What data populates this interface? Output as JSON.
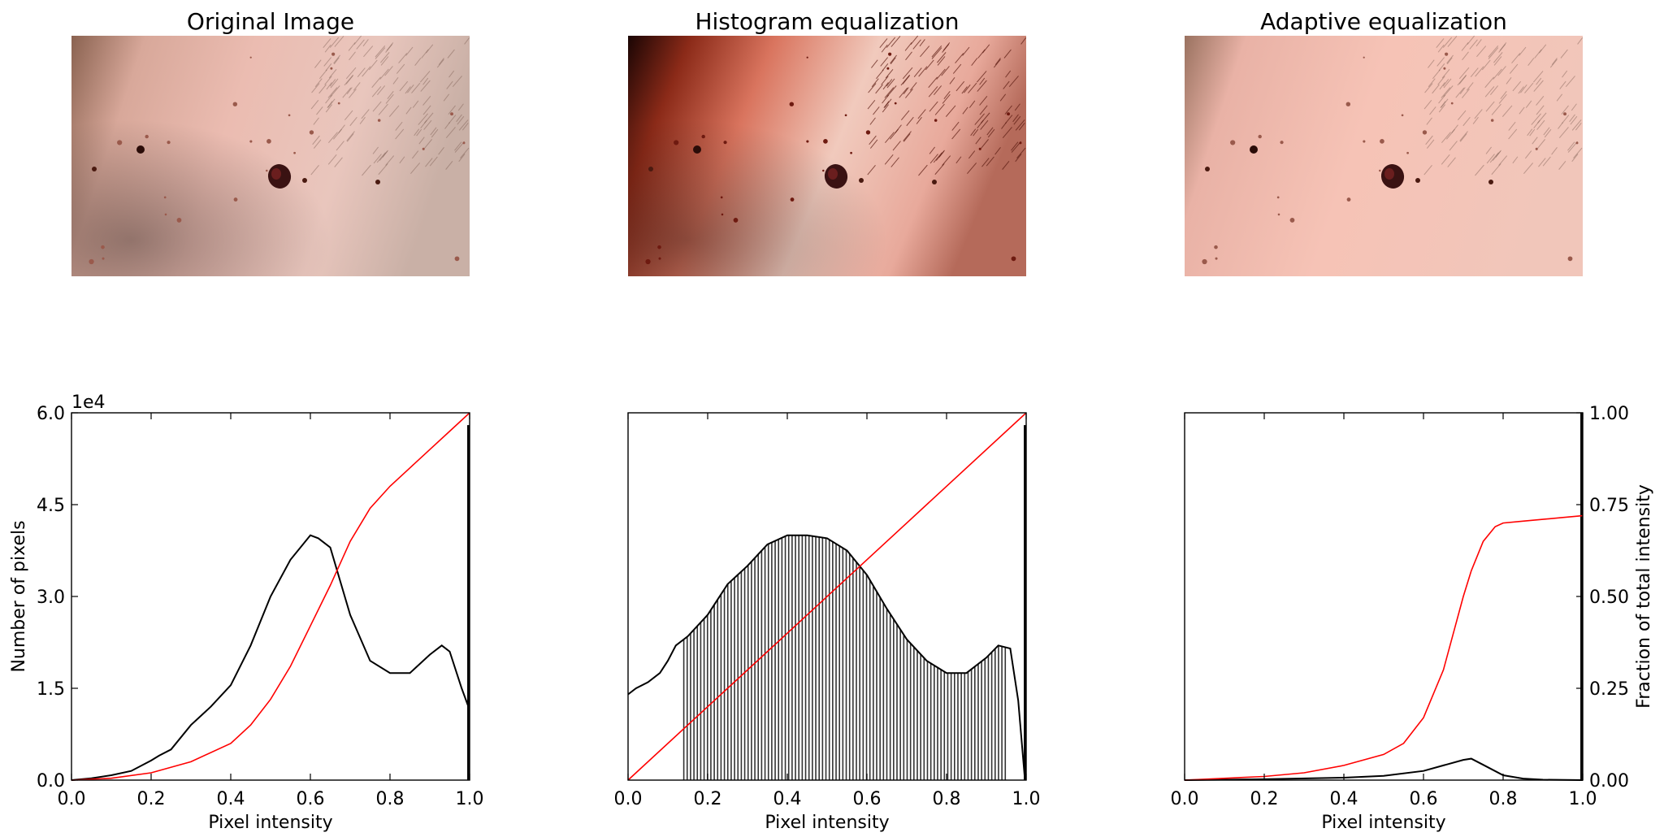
{
  "figure": {
    "images": [
      {
        "title": "Original Image",
        "variant": "original"
      },
      {
        "title": "Histogram equalization",
        "variant": "equalized"
      },
      {
        "title": "Adaptive equalization",
        "variant": "adaptive"
      }
    ]
  },
  "colors": {
    "histogram": "#000000",
    "cdf": "#ff0000",
    "skin_base": "#e6b8ad",
    "lesion": "#3a1212"
  },
  "chart_data": [
    {
      "type": "line",
      "title": "",
      "xlabel": "Pixel intensity",
      "ylabel": "Number of pixels",
      "y_offset_label": "1e4",
      "xlim": [
        0,
        1
      ],
      "ylim": [
        0,
        60000
      ],
      "xticks": [
        "0.0",
        "0.2",
        "0.4",
        "0.6",
        "0.8",
        "1.0"
      ],
      "yticks": [
        "0.0",
        "1.5",
        "3.0",
        "4.5",
        "6.0"
      ],
      "series": [
        {
          "kind": "histogram",
          "x": [
            0.0,
            0.05,
            0.1,
            0.15,
            0.2,
            0.22,
            0.25,
            0.3,
            0.35,
            0.4,
            0.45,
            0.5,
            0.55,
            0.6,
            0.62,
            0.65,
            0.7,
            0.75,
            0.8,
            0.85,
            0.9,
            0.93,
            0.95,
            0.98,
            0.997
          ],
          "y": [
            0,
            300,
            800,
            1500,
            3200,
            4000,
            5000,
            9000,
            12000,
            15500,
            22000,
            30000,
            36000,
            40000,
            39500,
            38000,
            27000,
            19500,
            17500,
            17500,
            20500,
            22000,
            21000,
            15000,
            12000
          ],
          "spike": {
            "x": 0.997,
            "y": 58000
          }
        },
        {
          "kind": "cdf",
          "scale": "fraction",
          "x": [
            0.0,
            0.1,
            0.2,
            0.3,
            0.4,
            0.45,
            0.5,
            0.55,
            0.6,
            0.65,
            0.7,
            0.75,
            0.8,
            0.85,
            0.9,
            0.95,
            1.0
          ],
          "y": [
            0,
            0.005,
            0.02,
            0.05,
            0.1,
            0.15,
            0.22,
            0.31,
            0.42,
            0.53,
            0.65,
            0.74,
            0.8,
            0.85,
            0.9,
            0.95,
            1.0
          ]
        }
      ]
    },
    {
      "type": "line",
      "title": "",
      "xlabel": "Pixel intensity",
      "xlim": [
        0,
        1
      ],
      "ylim": [
        0,
        60000
      ],
      "xticks": [
        "0.0",
        "0.2",
        "0.4",
        "0.6",
        "0.8",
        "1.0"
      ],
      "series": [
        {
          "kind": "histogram",
          "x": [
            0.0,
            0.02,
            0.05,
            0.08,
            0.1,
            0.12,
            0.15,
            0.2,
            0.25,
            0.3,
            0.35,
            0.4,
            0.45,
            0.5,
            0.55,
            0.6,
            0.65,
            0.7,
            0.75,
            0.8,
            0.85,
            0.9,
            0.93,
            0.96,
            0.98,
            0.997
          ],
          "y": [
            14000,
            15000,
            16000,
            17500,
            19500,
            22000,
            23500,
            27000,
            32000,
            35000,
            38500,
            40000,
            40000,
            39500,
            37500,
            33500,
            28000,
            23000,
            19500,
            17500,
            17500,
            20000,
            22000,
            21500,
            13000,
            0
          ],
          "spike": {
            "x": 0.997,
            "y": 58000
          },
          "dense_bars": true
        },
        {
          "kind": "cdf",
          "scale": "fraction",
          "x": [
            0.0,
            1.0
          ],
          "y": [
            0.0,
            1.0
          ]
        }
      ]
    },
    {
      "type": "line",
      "title": "",
      "xlabel": "Pixel intensity",
      "y2label": "Fraction of total intensity",
      "xlim": [
        0,
        1
      ],
      "ylim": [
        0,
        60000
      ],
      "y2lim": [
        0,
        1
      ],
      "xticks": [
        "0.0",
        "0.2",
        "0.4",
        "0.6",
        "0.8",
        "1.0"
      ],
      "y2ticks": [
        "0.00",
        "0.25",
        "0.50",
        "0.75",
        "1.00"
      ],
      "series": [
        {
          "kind": "histogram",
          "x": [
            0.0,
            0.2,
            0.4,
            0.5,
            0.6,
            0.65,
            0.7,
            0.72,
            0.75,
            0.8,
            0.85,
            0.9,
            1.0
          ],
          "y": [
            0,
            150,
            400,
            700,
            1500,
            2400,
            3300,
            3500,
            2500,
            800,
            250,
            60,
            0
          ],
          "spike": {
            "x": 0.997,
            "y": 60000
          }
        },
        {
          "kind": "cdf",
          "scale": "fraction",
          "x": [
            0.0,
            0.2,
            0.3,
            0.4,
            0.5,
            0.55,
            0.6,
            0.65,
            0.68,
            0.7,
            0.72,
            0.75,
            0.78,
            0.8,
            0.85,
            0.9,
            0.95,
            1.0
          ],
          "y": [
            0,
            0.01,
            0.02,
            0.04,
            0.07,
            0.1,
            0.17,
            0.3,
            0.42,
            0.5,
            0.57,
            0.65,
            0.69,
            0.7,
            0.705,
            0.71,
            0.715,
            0.72
          ]
        }
      ]
    }
  ]
}
